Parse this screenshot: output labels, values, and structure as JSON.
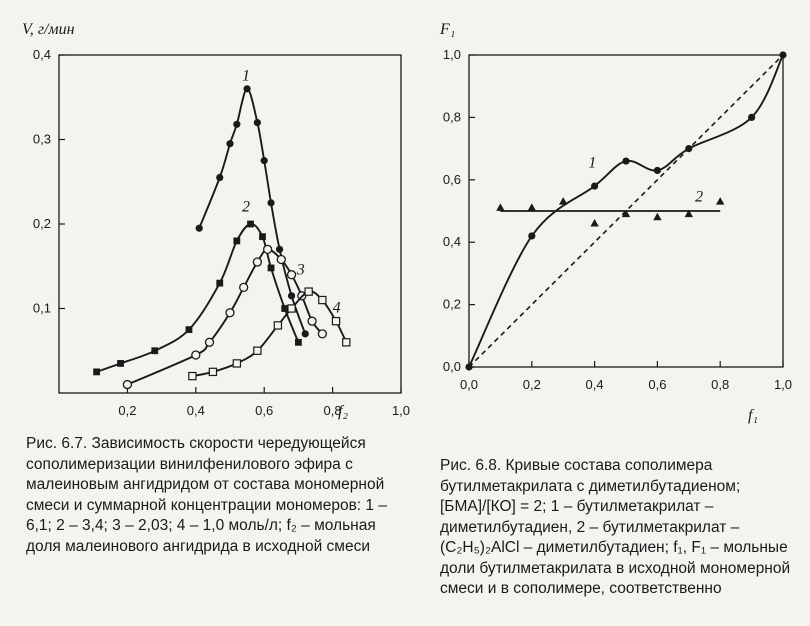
{
  "chart_data": [
    {
      "type": "line",
      "ylabel": "V, г/мин",
      "xlabel": "f₂",
      "xlim": [
        0.0,
        1.0
      ],
      "ylim": [
        0.0,
        0.4
      ],
      "xticks": [
        "0,2",
        "0,4",
        "0,6",
        "0,8",
        "1,0"
      ],
      "yticks": [
        "0,1",
        "0,2",
        "0,3",
        "0,4"
      ],
      "grid": false,
      "series": [
        {
          "name": "1",
          "marker": "filled-circle",
          "points": [
            [
              0.41,
              0.195
            ],
            [
              0.47,
              0.255
            ],
            [
              0.5,
              0.295
            ],
            [
              0.52,
              0.318
            ],
            [
              0.55,
              0.36
            ],
            [
              0.58,
              0.32
            ],
            [
              0.6,
              0.275
            ],
            [
              0.62,
              0.225
            ],
            [
              0.645,
              0.17
            ],
            [
              0.68,
              0.115
            ],
            [
              0.72,
              0.07
            ]
          ]
        },
        {
          "name": "2",
          "marker": "filled-square",
          "points": [
            [
              0.11,
              0.025
            ],
            [
              0.18,
              0.035
            ],
            [
              0.28,
              0.05
            ],
            [
              0.38,
              0.075
            ],
            [
              0.47,
              0.13
            ],
            [
              0.52,
              0.18
            ],
            [
              0.56,
              0.2
            ],
            [
              0.595,
              0.185
            ],
            [
              0.62,
              0.148
            ],
            [
              0.66,
              0.1
            ],
            [
              0.7,
              0.06
            ]
          ]
        },
        {
          "name": "3",
          "marker": "open-circle",
          "points": [
            [
              0.2,
              0.01
            ],
            [
              0.4,
              0.045
            ],
            [
              0.44,
              0.06
            ],
            [
              0.5,
              0.095
            ],
            [
              0.54,
              0.125
            ],
            [
              0.58,
              0.155
            ],
            [
              0.61,
              0.17
            ],
            [
              0.65,
              0.158
            ],
            [
              0.68,
              0.14
            ],
            [
              0.71,
              0.115
            ],
            [
              0.74,
              0.085
            ],
            [
              0.77,
              0.07
            ]
          ]
        },
        {
          "name": "4",
          "marker": "open-square",
          "points": [
            [
              0.39,
              0.02
            ],
            [
              0.45,
              0.025
            ],
            [
              0.52,
              0.035
            ],
            [
              0.58,
              0.05
            ],
            [
              0.64,
              0.08
            ],
            [
              0.68,
              0.1
            ],
            [
              0.73,
              0.12
            ],
            [
              0.77,
              0.11
            ],
            [
              0.81,
              0.085
            ],
            [
              0.84,
              0.06
            ]
          ]
        }
      ],
      "curve_labels": [
        "1",
        "2",
        "3",
        "4"
      ],
      "caption": "Рис. 6.7. Зависимость скорости чередующейся сополимеризации винилфенилового эфира с малеиновым ангидридом от состава мономерной смеси и суммарной концентрации мономеров: 1 – 6,1; 2 – 3,4; 3 – 2,03; 4 – 1,0 моль/л; f₂ – мольная доля малеинового ангидрида в исходной смеси"
    },
    {
      "type": "line",
      "ylabel": "F₁",
      "xlabel": "f₁",
      "xlim": [
        0.0,
        1.0
      ],
      "ylim": [
        0.0,
        1.0
      ],
      "xticks": [
        "0,0",
        "0,2",
        "0,4",
        "0,6",
        "0,8",
        "1,0"
      ],
      "yticks": [
        "0,0",
        "0,2",
        "0,4",
        "0,6",
        "0,8",
        "1,0"
      ],
      "grid": false,
      "series": [
        {
          "name": "1",
          "marker": "filled-circle",
          "points": [
            [
              0.0,
              0.0
            ],
            [
              0.2,
              0.42
            ],
            [
              0.4,
              0.58
            ],
            [
              0.5,
              0.66
            ],
            [
              0.6,
              0.63
            ],
            [
              0.7,
              0.7
            ],
            [
              0.9,
              0.8
            ],
            [
              1.0,
              1.0
            ]
          ]
        },
        {
          "name": "2",
          "marker": "filled-triangle",
          "points": [
            [
              0.1,
              0.51
            ],
            [
              0.2,
              0.51
            ],
            [
              0.3,
              0.53
            ],
            [
              0.4,
              0.46
            ],
            [
              0.5,
              0.49
            ],
            [
              0.6,
              0.48
            ],
            [
              0.7,
              0.49
            ],
            [
              0.8,
              0.53
            ]
          ]
        },
        {
          "name": "diagonal",
          "style": "dashed",
          "points": [
            [
              0.0,
              0.0
            ],
            [
              1.0,
              1.0
            ]
          ]
        }
      ],
      "curve_labels": [
        "1",
        "2"
      ],
      "caption": "Рис. 6.8. Кривые состава сополимера бутилметакрилата с диметилбутадиеном; [БМА]/[КО] = 2; 1 – бутилметакрилат – диметилбутадиен, 2 – бутилметакрилат – (C₂H₅)₂AlCl – диметилбутадиен; f₁, F₁ – мольные доли бутилметакрилата в исходной мономерной смеси и в сополимере, соответственно"
    }
  ]
}
